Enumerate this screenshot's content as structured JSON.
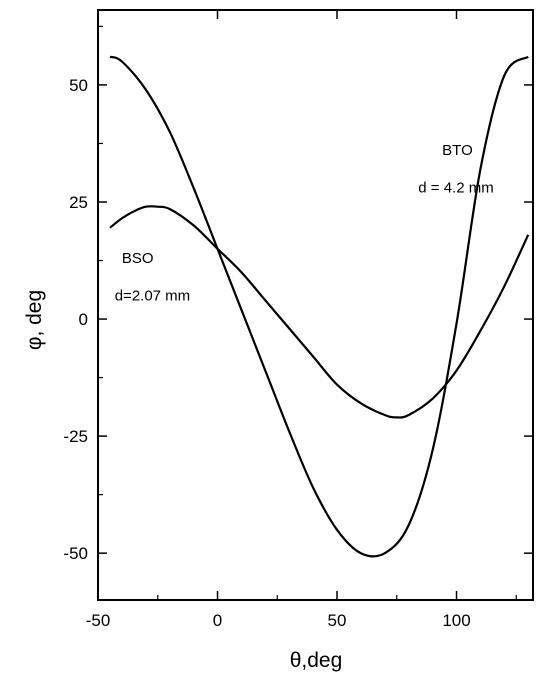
{
  "chart_data": {
    "type": "line",
    "title": "",
    "xlabel": "θ,deg",
    "ylabel": "φ, deg",
    "xlim": [
      -50,
      132
    ],
    "ylim": [
      -60,
      66
    ],
    "xticks": [
      -50,
      0,
      50,
      100
    ],
    "yticks": [
      -50,
      -25,
      0,
      25,
      50
    ],
    "grid": false,
    "legend": "none",
    "line_color": "#000000",
    "series": [
      {
        "x": [
          -45,
          -40,
          -30,
          -20,
          -10,
          0,
          10,
          20,
          30,
          40,
          50,
          60,
          70,
          80,
          90,
          100,
          110,
          120,
          130
        ],
        "y": [
          56,
          55,
          49,
          40,
          28,
          15,
          2,
          -11,
          -24,
          -36,
          -45,
          -50,
          -50,
          -44,
          -28,
          -1,
          32,
          52,
          56
        ]
      },
      {
        "x": [
          -45,
          -40,
          -35,
          -30,
          -25,
          -20,
          -10,
          0,
          10,
          20,
          30,
          40,
          50,
          60,
          70,
          75,
          80,
          90,
          100,
          110,
          120,
          130
        ],
        "y": [
          19.5,
          21.5,
          23,
          24,
          24,
          23.5,
          20,
          15,
          10,
          4,
          -2,
          -8,
          -14,
          -18,
          -20.5,
          -21,
          -20.5,
          -17,
          -11,
          -2.5,
          7,
          18
        ]
      }
    ],
    "annotations": [
      {
        "text": "BTO",
        "x": 94,
        "y": 35
      },
      {
        "text": "d = 4.2 mm",
        "x": 84,
        "y": 27
      },
      {
        "text": "BSO",
        "x": -40,
        "y": 12
      },
      {
        "text": "d=2.07 mm",
        "x": -43,
        "y": 4
      }
    ]
  }
}
